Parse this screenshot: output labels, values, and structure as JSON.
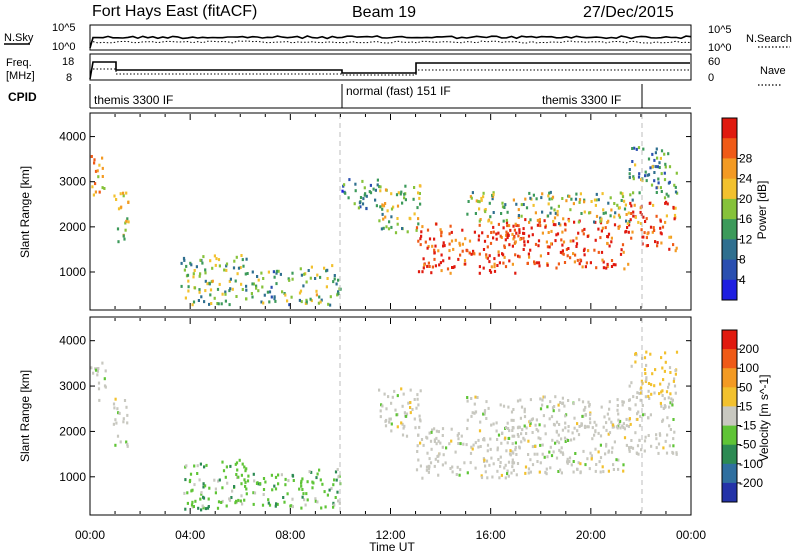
{
  "header": {
    "title": "Fort Hays East (fitACF)",
    "beam": "Beam 19",
    "date": "27/Dec/2015"
  },
  "side_labels": {
    "nsky": "N.Sky",
    "nsearch": "N.Search",
    "freq": "Freq.",
    "freq_unit": "[MHz]",
    "nave": "Nave",
    "cpid": "CPID"
  },
  "noise_panel": {
    "left_ticks": [
      "10^5",
      "10^0"
    ],
    "right_ticks": [
      "10^5",
      "10^0"
    ]
  },
  "freq_panel": {
    "left_ticks": [
      "18",
      "8"
    ],
    "right_ticks": [
      "60",
      "0"
    ]
  },
  "cpid_labels": [
    "themis 3300 IF",
    "normal (fast) 151 IF",
    "themis 3300 IF"
  ],
  "chart_data": [
    {
      "type": "heatmap",
      "name": "power",
      "ylabel": "Slant Range [km]",
      "ylim": [
        180,
        4500
      ],
      "yticks": [
        "1000",
        "2000",
        "3000",
        "4000"
      ],
      "xlabel": "Time UT",
      "xlim_hours": [
        0,
        24
      ],
      "xticks": [
        "00:00",
        "04:00",
        "08:00",
        "12:00",
        "16:00",
        "20:00",
        "00:00"
      ],
      "colorbar_label": "Power [dB]",
      "colorbar_ticks": [
        "4",
        "8",
        "12",
        "16",
        "20",
        "24",
        "28"
      ],
      "colorbar_colors": [
        "#1f1fe0",
        "#2a4fb0",
        "#2f6f8f",
        "#3c9a5a",
        "#86c23a",
        "#f2c12e",
        "#f39a23",
        "#ef5a17",
        "#e01a0f"
      ],
      "regions": [
        {
          "t": [
            0.0,
            0.6
          ],
          "r": [
            2700,
            3600
          ],
          "level": 0.7
        },
        {
          "t": [
            0.9,
            1.5
          ],
          "r": [
            1700,
            2800
          ],
          "level": 0.6
        },
        {
          "t": [
            3.6,
            6.3
          ],
          "r": [
            300,
            1400
          ],
          "level": 0.45
        },
        {
          "t": [
            6.4,
            8.1
          ],
          "r": [
            300,
            1100
          ],
          "level": 0.4
        },
        {
          "t": [
            8.3,
            10.0
          ],
          "r": [
            300,
            1200
          ],
          "level": 0.45
        },
        {
          "t": [
            10.0,
            11.5
          ],
          "r": [
            2400,
            3100
          ],
          "level": 0.3
        },
        {
          "t": [
            11.5,
            13.2
          ],
          "r": [
            1900,
            3000
          ],
          "level": 0.5
        },
        {
          "t": [
            13.0,
            17.0
          ],
          "r": [
            1000,
            2100
          ],
          "level": 0.95
        },
        {
          "t": [
            16.5,
            21.5
          ],
          "r": [
            1100,
            2200
          ],
          "level": 0.95
        },
        {
          "t": [
            15.0,
            21.5
          ],
          "r": [
            2100,
            2800
          ],
          "level": 0.5
        },
        {
          "t": [
            21.5,
            23.4
          ],
          "r": [
            1500,
            2600
          ],
          "level": 0.85
        },
        {
          "t": [
            21.5,
            23.4
          ],
          "r": [
            2600,
            3800
          ],
          "level": 0.35
        }
      ]
    },
    {
      "type": "heatmap",
      "name": "velocity",
      "ylabel": "Slant Range [km]",
      "ylim": [
        180,
        4500
      ],
      "yticks": [
        "1000",
        "2000",
        "3000",
        "4000"
      ],
      "xlabel": "Time UT",
      "xlim_hours": [
        0,
        24
      ],
      "xticks": [
        "00:00",
        "04:00",
        "08:00",
        "12:00",
        "16:00",
        "20:00",
        "00:00"
      ],
      "colorbar_label": "Velocity [m s^-1]",
      "colorbar_ticks": [
        "200",
        "100",
        "50",
        "15",
        "-15",
        "-50",
        "-100",
        "-200"
      ],
      "colorbar_colors": [
        "#2433a8",
        "#2f6f9f",
        "#2c8a53",
        "#5fc436",
        "#c8c8c0",
        "#f2c12e",
        "#f39a23",
        "#ef5a17",
        "#e01a0f"
      ],
      "regions": [
        {
          "t": [
            0.0,
            0.6
          ],
          "r": [
            2700,
            3600
          ],
          "level": 0.5
        },
        {
          "t": [
            0.9,
            1.5
          ],
          "r": [
            1700,
            2800
          ],
          "level": 0.5
        },
        {
          "t": [
            3.6,
            6.3
          ],
          "r": [
            300,
            1400
          ],
          "level": 0.3
        },
        {
          "t": [
            6.4,
            8.1
          ],
          "r": [
            300,
            1100
          ],
          "level": 0.4
        },
        {
          "t": [
            8.3,
            10.0
          ],
          "r": [
            300,
            1200
          ],
          "level": 0.3
        },
        {
          "t": [
            11.5,
            13.2
          ],
          "r": [
            1900,
            3000
          ],
          "level": 0.5
        },
        {
          "t": [
            13.0,
            17.0
          ],
          "r": [
            1000,
            2100
          ],
          "level": 0.5
        },
        {
          "t": [
            16.5,
            21.5
          ],
          "r": [
            1100,
            2200
          ],
          "level": 0.5
        },
        {
          "t": [
            15.0,
            21.5
          ],
          "r": [
            2100,
            2800
          ],
          "level": 0.5
        },
        {
          "t": [
            21.5,
            23.4
          ],
          "r": [
            1500,
            2800
          ],
          "level": 0.5
        },
        {
          "t": [
            21.5,
            23.4
          ],
          "r": [
            2800,
            3800
          ],
          "level": 0.65
        }
      ]
    }
  ]
}
